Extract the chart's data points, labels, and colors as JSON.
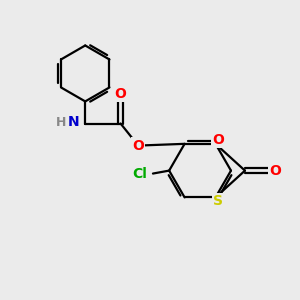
{
  "background_color": "#ebebeb",
  "atom_colors": {
    "C": "#000000",
    "N": "#0000cc",
    "O": "#ff0000",
    "S": "#cccc00",
    "Cl": "#00aa00",
    "H": "#888888"
  },
  "bond_color": "#000000",
  "bond_width": 1.6,
  "font_size": 10,
  "fig_size": [
    3.0,
    3.0
  ]
}
